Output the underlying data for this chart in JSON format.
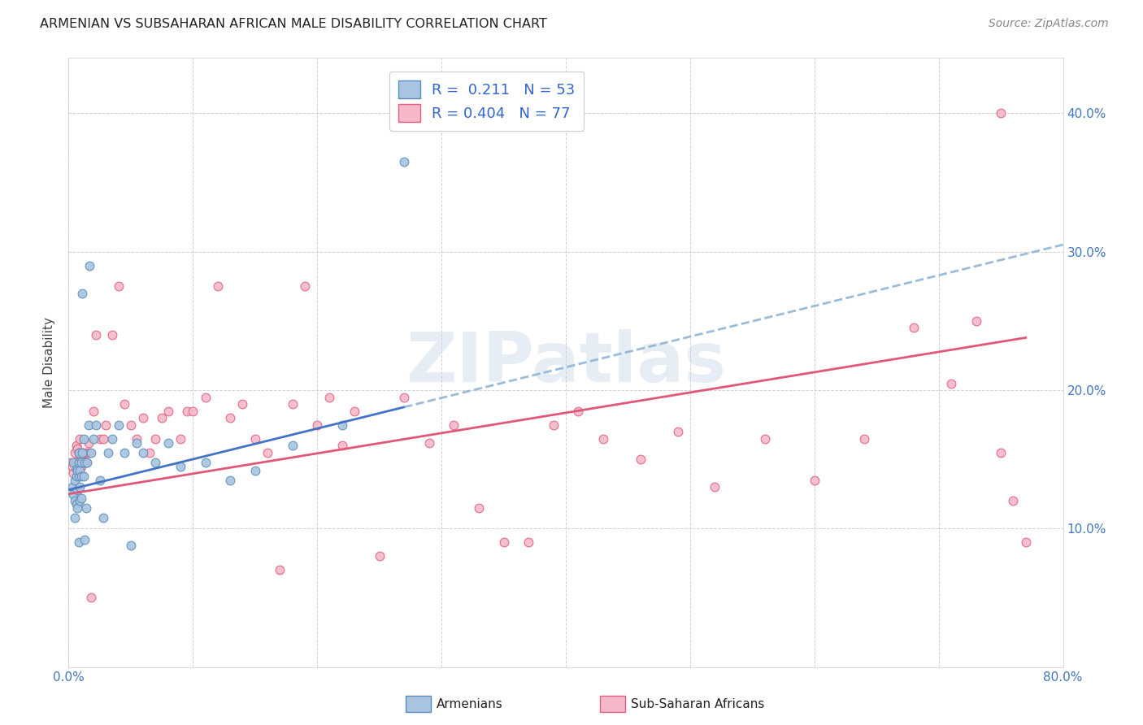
{
  "title": "ARMENIAN VS SUBSAHARAN AFRICAN MALE DISABILITY CORRELATION CHART",
  "source": "Source: ZipAtlas.com",
  "ylabel": "Male Disability",
  "xlim": [
    0.0,
    0.8
  ],
  "ylim": [
    0.0,
    0.44
  ],
  "xtick_positions": [
    0.0,
    0.1,
    0.2,
    0.3,
    0.4,
    0.5,
    0.6,
    0.7,
    0.8
  ],
  "xticklabels": [
    "0.0%",
    "",
    "",
    "",
    "",
    "",
    "",
    "",
    "80.0%"
  ],
  "ytick_positions": [
    0.0,
    0.1,
    0.2,
    0.3,
    0.4
  ],
  "ytick_labels_right": [
    "",
    "10.0%",
    "20.0%",
    "30.0%",
    "40.0%"
  ],
  "legend_r1": "0.211",
  "legend_n1": "53",
  "legend_r2": "0.404",
  "legend_n2": "77",
  "color_armenian_fill": "#a8c4e0",
  "color_armenian_edge": "#5b8db8",
  "color_subsaharan_fill": "#f4b8c8",
  "color_subsaharan_edge": "#e06080",
  "color_line_armenian": "#4472c4",
  "color_line_subsaharan": "#e05878",
  "color_dashed_ext": "#8ab0d0",
  "watermark": "ZIPatlas",
  "bottom_legend_armenians": "Armenians",
  "bottom_legend_subsaharan": "Sub-Saharan Africans",
  "armenian_x": [
    0.003,
    0.004,
    0.004,
    0.005,
    0.005,
    0.005,
    0.006,
    0.006,
    0.006,
    0.007,
    0.007,
    0.007,
    0.008,
    0.008,
    0.008,
    0.008,
    0.009,
    0.009,
    0.009,
    0.01,
    0.01,
    0.01,
    0.011,
    0.011,
    0.012,
    0.012,
    0.013,
    0.013,
    0.014,
    0.015,
    0.016,
    0.017,
    0.018,
    0.02,
    0.022,
    0.025,
    0.028,
    0.032,
    0.035,
    0.04,
    0.045,
    0.05,
    0.055,
    0.06,
    0.07,
    0.08,
    0.09,
    0.11,
    0.13,
    0.15,
    0.18,
    0.22,
    0.27
  ],
  "armenian_y": [
    0.13,
    0.148,
    0.125,
    0.135,
    0.12,
    0.108,
    0.143,
    0.138,
    0.118,
    0.142,
    0.128,
    0.115,
    0.148,
    0.155,
    0.138,
    0.09,
    0.142,
    0.13,
    0.12,
    0.148,
    0.138,
    0.122,
    0.27,
    0.155,
    0.165,
    0.138,
    0.148,
    0.092,
    0.115,
    0.148,
    0.175,
    0.29,
    0.155,
    0.165,
    0.175,
    0.135,
    0.108,
    0.155,
    0.165,
    0.175,
    0.155,
    0.088,
    0.162,
    0.155,
    0.148,
    0.162,
    0.145,
    0.148,
    0.135,
    0.142,
    0.16,
    0.175,
    0.365
  ],
  "subsaharan_x": [
    0.002,
    0.003,
    0.004,
    0.005,
    0.005,
    0.006,
    0.006,
    0.007,
    0.007,
    0.008,
    0.008,
    0.009,
    0.009,
    0.01,
    0.01,
    0.011,
    0.012,
    0.013,
    0.014,
    0.015,
    0.016,
    0.017,
    0.018,
    0.02,
    0.022,
    0.025,
    0.028,
    0.03,
    0.035,
    0.04,
    0.045,
    0.05,
    0.055,
    0.06,
    0.065,
    0.07,
    0.075,
    0.08,
    0.09,
    0.095,
    0.1,
    0.11,
    0.12,
    0.13,
    0.14,
    0.15,
    0.16,
    0.17,
    0.18,
    0.19,
    0.2,
    0.21,
    0.22,
    0.23,
    0.25,
    0.27,
    0.29,
    0.31,
    0.33,
    0.35,
    0.37,
    0.39,
    0.41,
    0.43,
    0.46,
    0.49,
    0.52,
    0.56,
    0.6,
    0.64,
    0.68,
    0.71,
    0.73,
    0.75,
    0.76,
    0.77,
    0.75
  ],
  "subsaharan_y": [
    0.148,
    0.145,
    0.14,
    0.148,
    0.155,
    0.148,
    0.16,
    0.148,
    0.158,
    0.145,
    0.155,
    0.148,
    0.165,
    0.152,
    0.145,
    0.155,
    0.148,
    0.155,
    0.148,
    0.155,
    0.162,
    0.155,
    0.05,
    0.185,
    0.24,
    0.165,
    0.165,
    0.175,
    0.24,
    0.275,
    0.19,
    0.175,
    0.165,
    0.18,
    0.155,
    0.165,
    0.18,
    0.185,
    0.165,
    0.185,
    0.185,
    0.195,
    0.275,
    0.18,
    0.19,
    0.165,
    0.155,
    0.07,
    0.19,
    0.275,
    0.175,
    0.195,
    0.16,
    0.185,
    0.08,
    0.195,
    0.162,
    0.175,
    0.115,
    0.09,
    0.09,
    0.175,
    0.185,
    0.165,
    0.15,
    0.17,
    0.13,
    0.165,
    0.135,
    0.165,
    0.245,
    0.205,
    0.25,
    0.155,
    0.12,
    0.09,
    0.4
  ]
}
